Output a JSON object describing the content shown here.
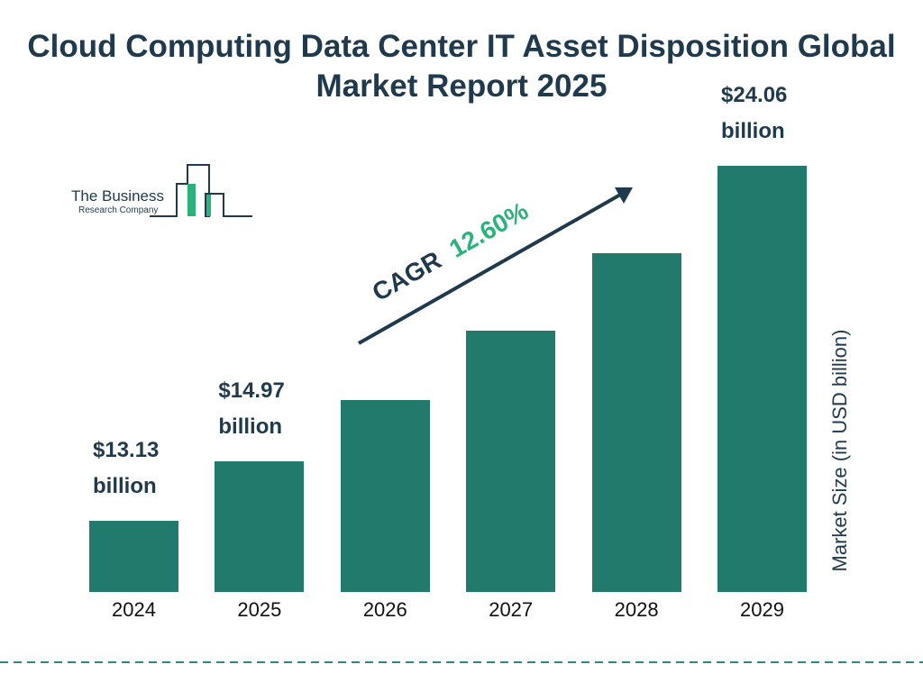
{
  "chart_data": {
    "type": "bar",
    "title": "Cloud Computing Data Center IT Asset Disposition Global Market Report 2025",
    "categories": [
      "2024",
      "2025",
      "2026",
      "2027",
      "2028",
      "2029"
    ],
    "values": [
      13.13,
      14.97,
      16.86,
      18.98,
      21.37,
      24.06
    ],
    "value_labels": [
      "$13.13 billion",
      "$14.97 billion",
      null,
      null,
      null,
      "$24.06 billion"
    ],
    "color": "#217a6b",
    "y_axis_label": "Market Size (in USD billion)",
    "cagr_label": "CAGR",
    "cagr_value": "12.60%",
    "logo": {
      "line1": "The Business",
      "line2": "Research Company"
    }
  }
}
